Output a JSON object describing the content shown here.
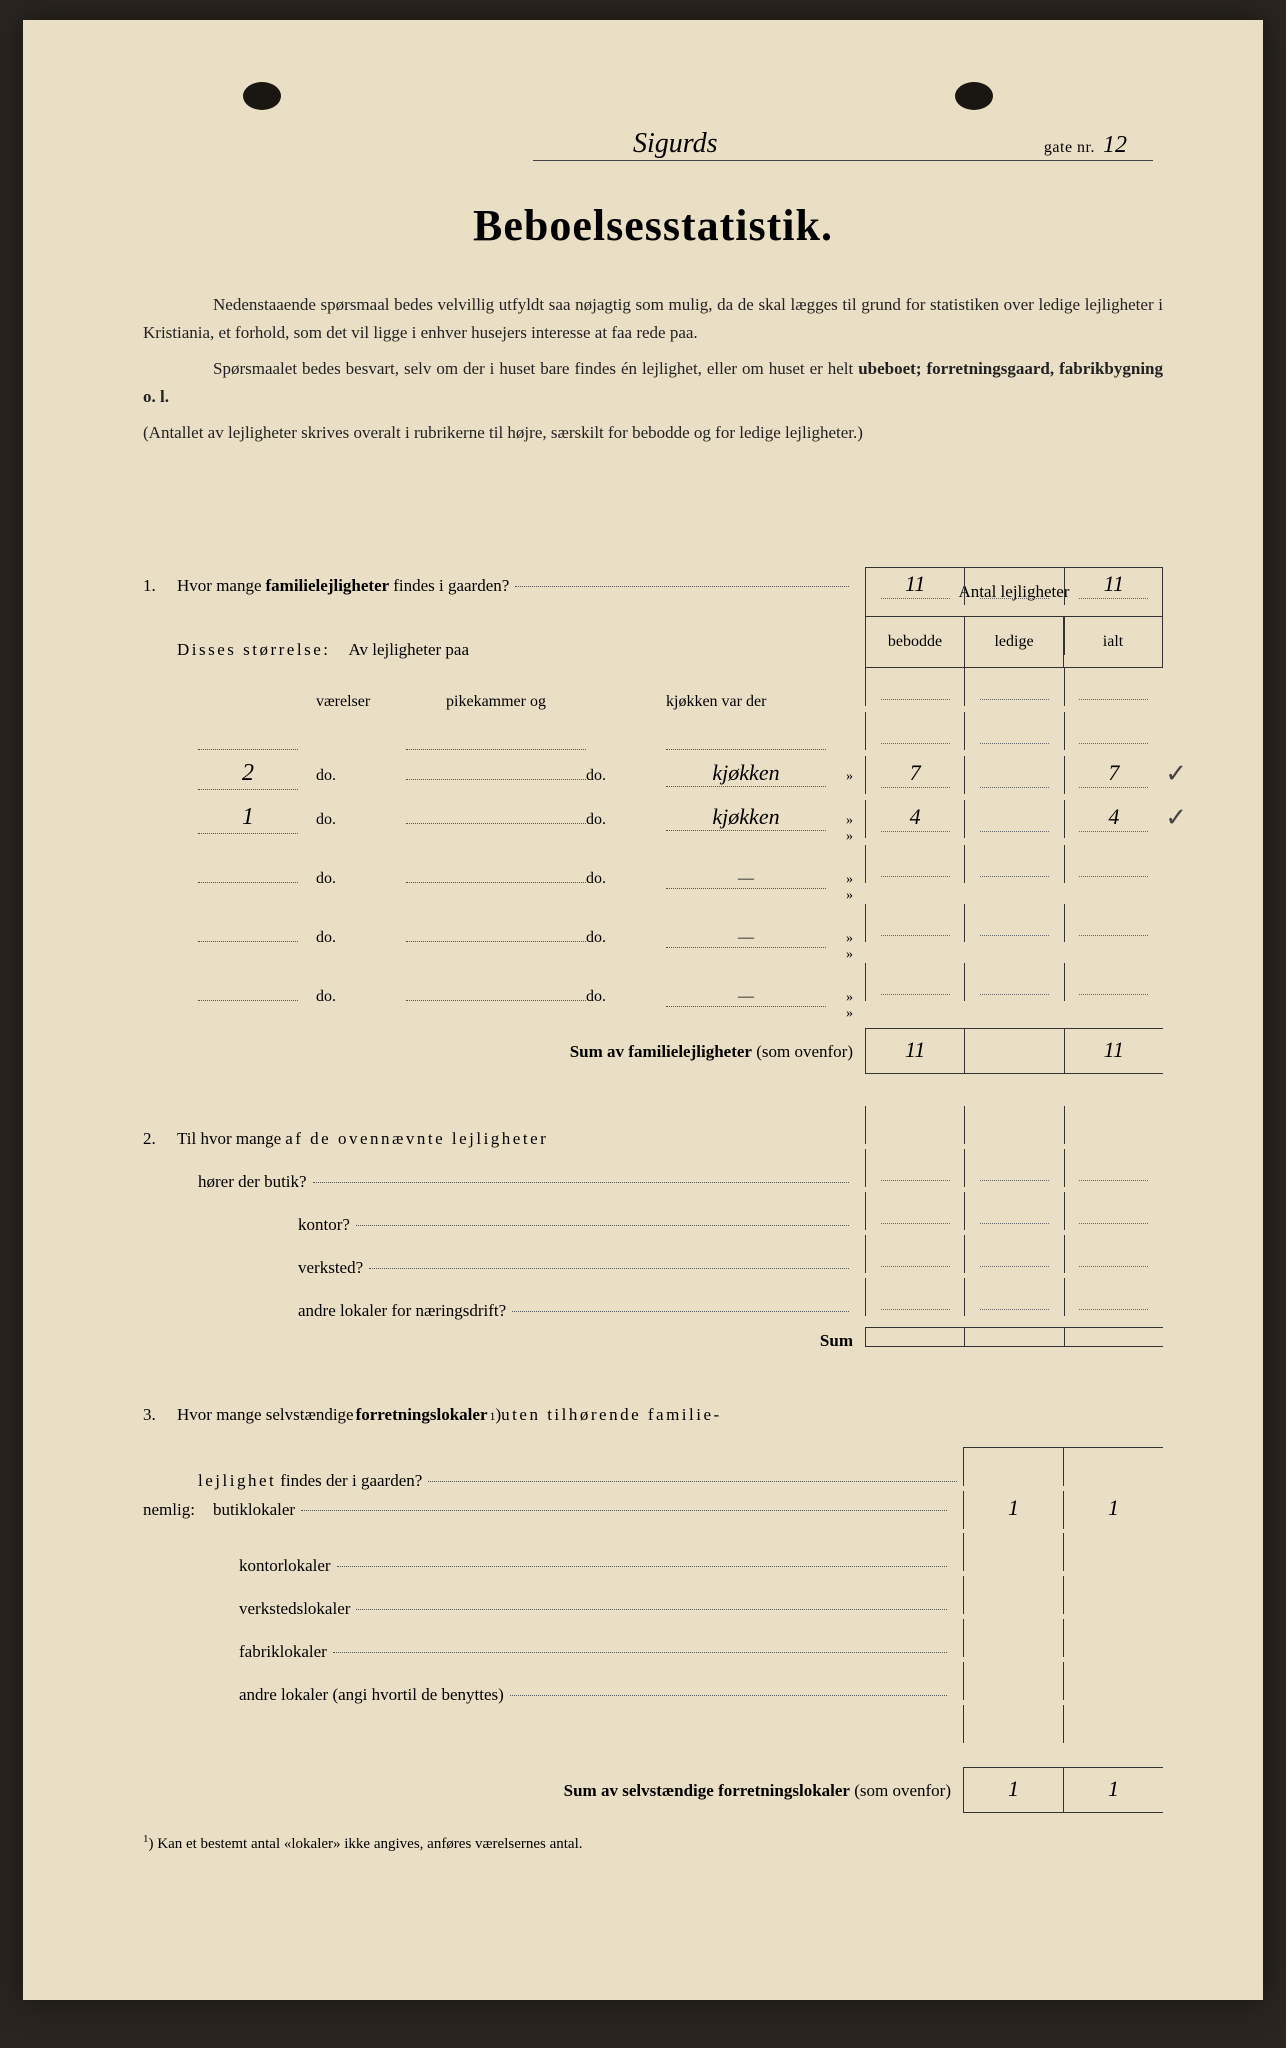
{
  "header": {
    "street_handwritten": "Sigurds",
    "gate_label": "gate nr.",
    "number_handwritten": "12"
  },
  "title": "Beboelsesstatistik.",
  "intro": {
    "p1_a": "Nedenstaaende spørsmaal bedes velvillig utfyldt saa nøjagtig som mulig, da de skal lægges til grund for statistiken over ledige lejligheter i Kristiania, et forhold, som det vil ligge i enhver husejers interesse at faa rede paa.",
    "p2_a": "Spørsmaalet bedes besvart, selv om der i huset bare findes én lejlighet, eller om huset er helt ",
    "p2_b": "ubeboet; forretningsgaard, fabrikbygning o. l.",
    "p3": "(Antallet av lejligheter skrives overalt i rubrikerne til højre, særskilt for bebodde og for ledige lejligheter.)"
  },
  "table_header": {
    "title": "Antal lejligheter",
    "col1": "bebodde",
    "col2": "ledige",
    "col3": "ialt"
  },
  "q1": {
    "num": "1.",
    "text_a": "Hvor mange ",
    "text_b": "familielejligheter",
    "text_c": " findes i gaarden?",
    "bebodde": "11",
    "ledige": "",
    "ialt": "11",
    "disses": "Disses størrelse:",
    "disses_sub": "Av lejligheter paa",
    "head_vaerelser": "værelser",
    "head_pike": "pikekammer og",
    "head_kjokken": "kjøkken var der",
    "rows": [
      {
        "v": "",
        "do1": "",
        "pike": "",
        "do2": "",
        "kj": "",
        "rest": "",
        "b": "",
        "l": "",
        "i": ""
      },
      {
        "v": "2",
        "do1": "do.",
        "pike": "",
        "do2": "do.",
        "kj": "kjøkken",
        "rest": "»",
        "b": "7",
        "l": "",
        "i": "7",
        "check": true
      },
      {
        "v": "1",
        "do1": "do.",
        "pike": "",
        "do2": "do.",
        "kj": "kjøkken",
        "rest": "»  »",
        "b": "4",
        "l": "",
        "i": "4",
        "check": true
      },
      {
        "v": "",
        "do1": "do.",
        "pike": "",
        "do2": "do.",
        "kj": "—",
        "rest": "»  »",
        "b": "",
        "l": "",
        "i": ""
      },
      {
        "v": "",
        "do1": "do.",
        "pike": "",
        "do2": "do.",
        "kj": "—",
        "rest": "»  »",
        "b": "",
        "l": "",
        "i": ""
      },
      {
        "v": "",
        "do1": "do.",
        "pike": "",
        "do2": "do.",
        "kj": "—",
        "rest": "»  »",
        "b": "",
        "l": "",
        "i": ""
      }
    ],
    "sum_label_a": "Sum av familielejligheter",
    "sum_label_b": " (som ovenfor)",
    "sum_b": "11",
    "sum_l": "",
    "sum_i": "11"
  },
  "q2": {
    "num": "2.",
    "line1_a": "Til hvor mange ",
    "line1_b": "af de ovennævnte lejligheter",
    "line2": "hører der butik?",
    "kontor": "kontor?",
    "verksted": "verksted?",
    "andre": "andre lokaler for næringsdrift?",
    "sum": "Sum"
  },
  "q3": {
    "num": "3.",
    "line1_a": "Hvor mange selvstændige ",
    "line1_b": "forretningslokaler",
    "line1_sup": "1",
    "line1_c": ") ",
    "line1_d": "uten tilhørende familie-",
    "line2_a": "lejlighet",
    "line2_b": " findes der i gaarden?",
    "nemlig": "nemlig:",
    "rows": [
      {
        "label": "butiklokaler",
        "l": "1",
        "i": "1"
      },
      {
        "label": "kontorlokaler",
        "l": "",
        "i": ""
      },
      {
        "label": "verkstedslokaler",
        "l": "",
        "i": ""
      },
      {
        "label": "fabriklokaler",
        "l": "",
        "i": ""
      },
      {
        "label": "andre lokaler (angi hvortil de benyttes)",
        "l": "",
        "i": ""
      }
    ],
    "sum_a": "Sum av selvstændige forretningslokaler",
    "sum_b": " (som ovenfor)",
    "sum_l": "1",
    "sum_i": "1"
  },
  "footnote": {
    "sup": "1",
    "text": ")  Kan et bestemt antal «lokaler» ikke angives, anføres værelsernes antal."
  },
  "colors": {
    "paper": "#e8dfc5",
    "ink": "#222222",
    "handwriting": "#3a3428",
    "border": "#333333",
    "background": "#2a2520"
  }
}
